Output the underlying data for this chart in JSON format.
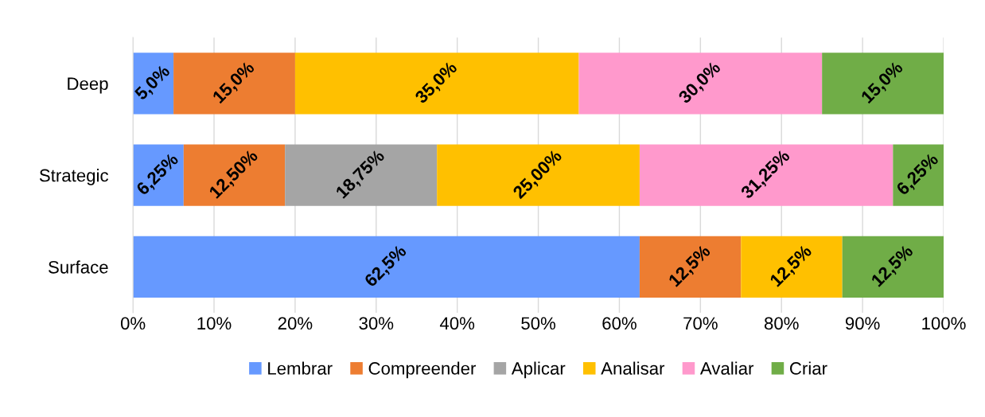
{
  "chart_data": {
    "type": "bar",
    "orientation": "horizontal",
    "stacked": true,
    "categories": [
      "Deep",
      "Strategic",
      "Surface"
    ],
    "series": [
      {
        "name": "Lembrar",
        "color": "#6699ff",
        "values": [
          5.0,
          6.25,
          62.5
        ],
        "value_labels": [
          "5,0%",
          "6,25%",
          "62,5%"
        ]
      },
      {
        "name": "Compreender",
        "color": "#ed7d31",
        "values": [
          15.0,
          12.5,
          12.5
        ],
        "value_labels": [
          "15,0%",
          "12,50%",
          "12,5%"
        ]
      },
      {
        "name": "Aplicar",
        "color": "#a5a5a5",
        "values": [
          null,
          18.75,
          null
        ],
        "value_labels": [
          null,
          "18,75%",
          null
        ]
      },
      {
        "name": "Analisar",
        "color": "#ffc000",
        "values": [
          35.0,
          25.0,
          12.5
        ],
        "value_labels": [
          "35,0%",
          "25,00%",
          "12,5%"
        ]
      },
      {
        "name": "Avaliar",
        "color": "#ff99cc",
        "values": [
          30.0,
          31.25,
          null
        ],
        "value_labels": [
          "30,0%",
          "31,25%",
          null
        ]
      },
      {
        "name": "Criar",
        "color": "#70ad47",
        "values": [
          15.0,
          6.25,
          12.5
        ],
        "value_labels": [
          "15,0%",
          "6,25%",
          "12,5%"
        ]
      }
    ],
    "xlim": [
      0,
      100
    ],
    "xticks": [
      {
        "value": 0,
        "label": "0%"
      },
      {
        "value": 10,
        "label": "10%"
      },
      {
        "value": 20,
        "label": "20%"
      },
      {
        "value": 30,
        "label": "30%"
      },
      {
        "value": 40,
        "label": "40%"
      },
      {
        "value": 50,
        "label": "50%"
      },
      {
        "value": 60,
        "label": "60%"
      },
      {
        "value": 70,
        "label": "70%"
      },
      {
        "value": 80,
        "label": "80%"
      },
      {
        "value": 90,
        "label": "90%"
      },
      {
        "value": 100,
        "label": "100%"
      }
    ],
    "grid": "x",
    "legend": "bottom"
  }
}
